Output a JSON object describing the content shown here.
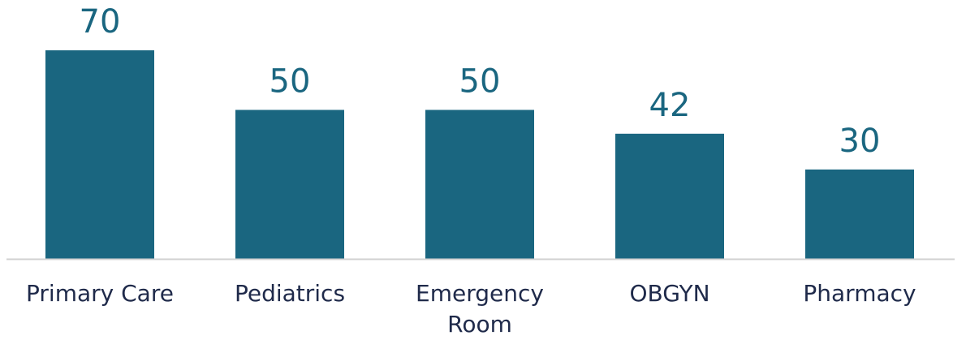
{
  "chart_data": {
    "type": "bar",
    "title": "",
    "xlabel": "",
    "ylabel": "",
    "categories": [
      "Primary Care",
      "Pediatrics",
      "Emergency Room",
      "OBGYN",
      "Pharmacy"
    ],
    "category_lines": [
      [
        "Primary Care"
      ],
      [
        "Pediatrics"
      ],
      [
        "Emergency",
        "Room"
      ],
      [
        "OBGYN"
      ],
      [
        "Pharmacy"
      ]
    ],
    "values": [
      70,
      50,
      50,
      42,
      30
    ],
    "value_labels": [
      "70",
      "50",
      "50",
      "42",
      "30"
    ],
    "ylim": [
      0,
      70
    ],
    "grid": false,
    "legend": "none",
    "colors": {
      "bar": "#1a6680",
      "label": "#1a6680",
      "category": "#1f2a4a",
      "axis": "#d0d0d0"
    }
  }
}
